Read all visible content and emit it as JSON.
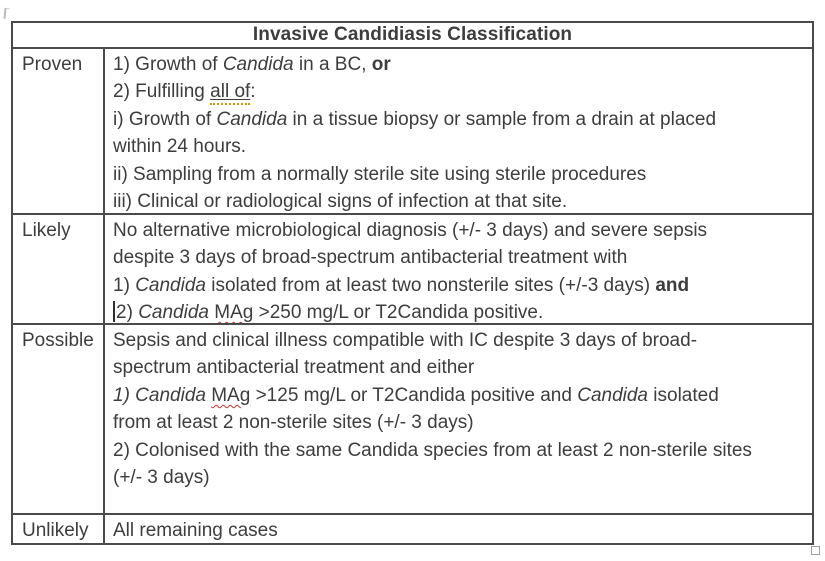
{
  "title": "Invasive Candidiasis Classification",
  "colors": {
    "text": "#3d3d3d",
    "border": "#4a4a4a",
    "squiggle_red": "#cc3030",
    "grammar_gold": "#c69c00"
  },
  "icons": {
    "resize_handle": "table-resize-handle-icon",
    "margin_mark": "page-margin-mark-icon"
  },
  "table": {
    "rows": [
      {
        "label": "Proven",
        "lines": [
          [
            {
              "text": "1) Growth of "
            },
            {
              "text": "Candida",
              "style": [
                "italic"
              ]
            },
            {
              "text": " in a BC, "
            },
            {
              "text": "or",
              "style": [
                "bold"
              ]
            }
          ],
          [
            {
              "text": "2) Fulfilling "
            },
            {
              "text": "all of",
              "style": [
                "underline-gold"
              ]
            },
            {
              "text": ":"
            }
          ],
          [
            {
              "text": "i) Growth of "
            },
            {
              "text": "Candida",
              "style": [
                "italic"
              ]
            },
            {
              "text": " in a tissue biopsy or sample from a drain at placed"
            }
          ],
          [
            {
              "text": "within 24 hours."
            }
          ],
          [
            {
              "text": "ii) Sampling from a normally sterile site using sterile procedures"
            }
          ],
          [
            {
              "text": "iii) Clinical or radiological signs of infection at that site."
            }
          ]
        ]
      },
      {
        "label": "Likely",
        "lines": [
          [
            {
              "text": "No alternative microbiological diagnosis (+/- 3 days) and severe sepsis"
            }
          ],
          [
            {
              "text": "despite 3 days of broad-spectrum antibacterial treatment with"
            }
          ],
          [
            {
              "text": "1) "
            },
            {
              "text": "Candida",
              "style": [
                "italic"
              ]
            },
            {
              "text": " isolated from at least two nonsterile sites (+/-3 days) "
            },
            {
              "text": "and",
              "style": [
                "bold"
              ]
            }
          ],
          [
            {
              "caret": true
            },
            {
              "text": "2) "
            },
            {
              "text": "Candida",
              "style": [
                "italic"
              ]
            },
            {
              "text": " "
            },
            {
              "text": "MAg",
              "style": [
                "squiggle"
              ]
            },
            {
              "text": " >250 mg/L or T2Candida positive."
            }
          ]
        ]
      },
      {
        "label": "Possible",
        "lines": [
          [
            {
              "text": "Sepsis and clinical illness compatible with IC despite 3 days of broad-"
            }
          ],
          [
            {
              "text": "spectrum antibacterial treatment and either"
            }
          ],
          [
            {
              "text": "1) Candida",
              "style": [
                "italic"
              ]
            },
            {
              "text": " "
            },
            {
              "text": "MAg",
              "style": [
                "squiggle"
              ]
            },
            {
              "text": " >125 mg/L or T2Candida positive and "
            },
            {
              "text": "Candida",
              "style": [
                "italic"
              ]
            },
            {
              "text": " isolated"
            }
          ],
          [
            {
              "text": "from at least 2 non-sterile sites (+/- 3 days)"
            }
          ],
          [
            {
              "text": "2) Colonised with the same Candida species from at least 2 non-sterile sites"
            }
          ],
          [
            {
              "text": "(+/- 3 days)"
            }
          ]
        ]
      },
      {
        "label": "Unlikely",
        "lines": [
          [
            {
              "text": "All remaining cases"
            }
          ]
        ]
      }
    ]
  }
}
